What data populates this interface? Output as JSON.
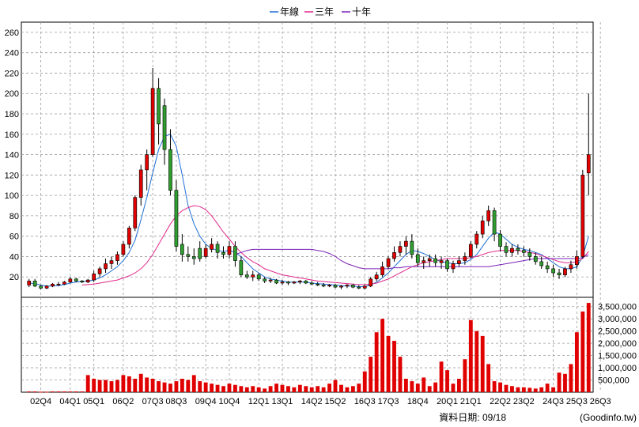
{
  "legend": [
    {
      "label": "年線",
      "color": "#1f6fd6"
    },
    {
      "label": "三年",
      "color": "#e0298a"
    },
    {
      "label": "十年",
      "color": "#7a22b8"
    }
  ],
  "footer": {
    "date_text": "資料日期: 09/18",
    "source_text": "(Goodinfo.tw)"
  },
  "colors": {
    "up": "#e00000",
    "down": "#2f9e2f",
    "volume": "#e00000",
    "grid": "#9a9a9a"
  },
  "chart_data": {
    "type": "candlestick+volume",
    "x_tick_labels": [
      "02Q4",
      "04Q1",
      "05Q1",
      "06Q2",
      "07Q3",
      "08Q3",
      "09Q4",
      "10Q4",
      "12Q1",
      "13Q1",
      "14Q2",
      "15Q2",
      "16Q3",
      "17Q3",
      "18Q4",
      "20Q1",
      "21Q1",
      "22Q2",
      "23Q2",
      "24Q3",
      "25Q3",
      "26Q3"
    ],
    "x_tick_index": [
      2,
      7,
      11,
      16,
      21,
      25,
      30,
      34,
      39,
      43,
      48,
      52,
      57,
      61,
      66,
      71,
      75,
      80,
      84,
      89,
      93,
      97
    ],
    "price_ylim": [
      0,
      270
    ],
    "price_ticks": [
      20,
      40,
      60,
      80,
      100,
      120,
      140,
      160,
      180,
      200,
      220,
      240,
      260
    ],
    "volume_ylim": [
      0,
      3750000
    ],
    "volume_tick_labels": [
      "500,000",
      "1,000,000",
      "1,500,000",
      "2,000,000",
      "2,500,000",
      "3,000,000",
      "3,500,000"
    ],
    "volume_tick_values": [
      500000,
      1000000,
      1500000,
      2000000,
      2500000,
      3000000,
      3500000
    ],
    "grid": true,
    "legend_position": "top-center",
    "candles": [
      [
        12,
        18,
        10,
        16
      ],
      [
        16,
        18,
        10,
        11
      ],
      [
        11,
        12,
        8,
        9
      ],
      [
        9,
        12,
        8,
        11
      ],
      [
        11,
        14,
        10,
        13
      ],
      [
        13,
        15,
        11,
        13
      ],
      [
        13,
        16,
        12,
        15
      ],
      [
        15,
        20,
        14,
        18
      ],
      [
        18,
        19,
        15,
        16
      ],
      [
        16,
        17,
        14,
        15
      ],
      [
        15,
        18,
        14,
        17
      ],
      [
        17,
        26,
        15,
        23
      ],
      [
        23,
        30,
        20,
        28
      ],
      [
        28,
        38,
        24,
        33
      ],
      [
        33,
        40,
        28,
        36
      ],
      [
        36,
        45,
        32,
        42
      ],
      [
        42,
        55,
        40,
        52
      ],
      [
        52,
        70,
        48,
        68
      ],
      [
        68,
        100,
        65,
        98
      ],
      [
        98,
        130,
        90,
        125
      ],
      [
        125,
        145,
        105,
        140
      ],
      [
        140,
        225,
        138,
        205
      ],
      [
        205,
        215,
        150,
        170
      ],
      [
        188,
        195,
        130,
        145
      ],
      [
        145,
        165,
        100,
        105
      ],
      [
        105,
        115,
        45,
        50
      ],
      [
        52,
        62,
        35,
        42
      ],
      [
        42,
        50,
        35,
        40
      ],
      [
        40,
        48,
        32,
        38
      ],
      [
        48,
        55,
        35,
        38
      ],
      [
        40,
        52,
        38,
        48
      ],
      [
        47,
        58,
        44,
        52
      ],
      [
        52,
        55,
        38,
        44
      ],
      [
        44,
        50,
        38,
        42
      ],
      [
        42,
        55,
        38,
        50
      ],
      [
        50,
        55,
        30,
        36
      ],
      [
        36,
        40,
        20,
        22
      ],
      [
        22,
        26,
        18,
        20
      ],
      [
        20,
        26,
        16,
        22
      ],
      [
        22,
        24,
        16,
        18
      ],
      [
        18,
        20,
        14,
        16
      ],
      [
        16,
        19,
        14,
        17
      ],
      [
        17,
        18,
        13,
        14
      ],
      [
        14,
        17,
        12,
        15
      ],
      [
        15,
        16,
        12,
        14
      ],
      [
        14,
        16,
        13,
        15
      ],
      [
        15,
        17,
        13,
        16
      ],
      [
        16,
        17,
        13,
        14
      ],
      [
        14,
        16,
        12,
        13
      ],
      [
        13,
        15,
        11,
        12
      ],
      [
        12,
        14,
        10,
        11
      ],
      [
        11,
        13,
        10,
        12
      ],
      [
        12,
        13,
        9,
        10
      ],
      [
        10,
        12,
        8,
        11
      ],
      [
        11,
        13,
        9,
        12
      ],
      [
        12,
        13,
        9,
        10
      ],
      [
        10,
        12,
        8,
        9
      ],
      [
        9,
        12,
        8,
        11
      ],
      [
        11,
        20,
        10,
        18
      ],
      [
        18,
        25,
        16,
        22
      ],
      [
        22,
        35,
        20,
        30
      ],
      [
        30,
        40,
        28,
        38
      ],
      [
        38,
        50,
        35,
        44
      ],
      [
        44,
        55,
        40,
        50
      ],
      [
        50,
        60,
        42,
        55
      ],
      [
        55,
        62,
        38,
        42
      ],
      [
        42,
        48,
        30,
        34
      ],
      [
        34,
        40,
        28,
        36
      ],
      [
        36,
        42,
        30,
        38
      ],
      [
        38,
        42,
        30,
        34
      ],
      [
        34,
        40,
        28,
        36
      ],
      [
        36,
        38,
        25,
        28
      ],
      [
        28,
        36,
        24,
        33
      ],
      [
        33,
        40,
        30,
        36
      ],
      [
        36,
        44,
        32,
        40
      ],
      [
        40,
        55,
        38,
        52
      ],
      [
        52,
        65,
        48,
        62
      ],
      [
        62,
        80,
        58,
        75
      ],
      [
        75,
        90,
        70,
        85
      ],
      [
        85,
        88,
        55,
        62
      ],
      [
        62,
        66,
        45,
        50
      ],
      [
        50,
        54,
        40,
        44
      ],
      [
        44,
        52,
        40,
        48
      ],
      [
        48,
        52,
        42,
        46
      ],
      [
        46,
        50,
        40,
        44
      ],
      [
        44,
        48,
        36,
        40
      ],
      [
        40,
        44,
        32,
        35
      ],
      [
        35,
        40,
        28,
        31
      ],
      [
        31,
        35,
        24,
        28
      ],
      [
        28,
        32,
        20,
        24
      ],
      [
        24,
        28,
        18,
        22
      ],
      [
        22,
        30,
        20,
        28
      ],
      [
        28,
        36,
        24,
        32
      ],
      [
        32,
        46,
        28,
        40
      ],
      [
        40,
        125,
        38,
        120
      ],
      [
        122,
        200,
        100,
        140
      ]
    ],
    "volume": [
      30000,
      30000,
      20000,
      20000,
      30000,
      30000,
      30000,
      30000,
      30000,
      30000,
      700000,
      550000,
      500000,
      500000,
      450000,
      500000,
      700000,
      650000,
      550000,
      750000,
      600000,
      550000,
      450000,
      400000,
      350000,
      450000,
      550000,
      500000,
      700000,
      450000,
      400000,
      350000,
      300000,
      250000,
      350000,
      300000,
      250000,
      200000,
      250000,
      200000,
      150000,
      250000,
      350000,
      300000,
      250000,
      200000,
      300000,
      250000,
      200000,
      250000,
      200000,
      350000,
      500000,
      300000,
      200000,
      250000,
      350000,
      850000,
      1450000,
      2450000,
      3000000,
      2300000,
      2100000,
      1450000,
      550000,
      450000,
      350000,
      600000,
      250000,
      400000,
      1250000,
      900000,
      350000,
      550000,
      1350000,
      2950000,
      2500000,
      2300000,
      1150000,
      450000,
      400000,
      300000,
      250000,
      200000,
      200000,
      180000,
      150000,
      200000,
      350000,
      200000,
      800000,
      750000,
      1150000,
      2450000,
      3300000,
      3650000
    ],
    "series": [
      {
        "name": "年線",
        "values": [
          14,
          13.5,
          12,
          11,
          11,
          11.5,
          12.5,
          14,
          15,
          15.5,
          16,
          17,
          19,
          22,
          26,
          30,
          36,
          44,
          56,
          76,
          98,
          122,
          145,
          158,
          160,
          148,
          120,
          90,
          72,
          60,
          52,
          48,
          46,
          45,
          46,
          44,
          40,
          34,
          28,
          24,
          20,
          18,
          17,
          16,
          15,
          15,
          15,
          15,
          14,
          13.5,
          13,
          12.5,
          12,
          11.5,
          11,
          11,
          10.5,
          10.5,
          12,
          15,
          19,
          24,
          30,
          36,
          42,
          46,
          45,
          43,
          40,
          37,
          35,
          34,
          33,
          33,
          34,
          37,
          42,
          50,
          58,
          64,
          62,
          57,
          52,
          49,
          47,
          46,
          44,
          42,
          38,
          34,
          30,
          28,
          28,
          30,
          40,
          60
        ]
      },
      {
        "name": "三年",
        "values": [
          null,
          null,
          null,
          null,
          null,
          null,
          null,
          null,
          null,
          12,
          12.5,
          13,
          14,
          15,
          16,
          17,
          19,
          21,
          24,
          28,
          34,
          42,
          52,
          62,
          72,
          80,
          85,
          88,
          90,
          89,
          86,
          80,
          72,
          64,
          57,
          50,
          44,
          39,
          35,
          32,
          28,
          26,
          24,
          22,
          21,
          20,
          19,
          18,
          17,
          16,
          15.5,
          15,
          14.5,
          14,
          13.5,
          13,
          12.5,
          12.5,
          13,
          14,
          16,
          18,
          21,
          24,
          27,
          30,
          32,
          34,
          35,
          36,
          37,
          38,
          38,
          38,
          38,
          39,
          40,
          42,
          44,
          45,
          46,
          46,
          46,
          46,
          45,
          44,
          43,
          41,
          39,
          37,
          35,
          34,
          34,
          35,
          38,
          45
        ]
      },
      {
        "name": "十年",
        "values": [
          null,
          null,
          null,
          null,
          null,
          null,
          null,
          null,
          null,
          null,
          null,
          null,
          null,
          null,
          null,
          null,
          null,
          null,
          null,
          null,
          null,
          null,
          null,
          null,
          null,
          null,
          null,
          null,
          null,
          null,
          null,
          null,
          null,
          null,
          null,
          42,
          44,
          46,
          47,
          47,
          47,
          47,
          47,
          47,
          47,
          47,
          47,
          47,
          47,
          46,
          45,
          43,
          40,
          36,
          33,
          31,
          29,
          28,
          28,
          28,
          28,
          28,
          29,
          29,
          30,
          30,
          30,
          30,
          30,
          30,
          30,
          30,
          30,
          30,
          30,
          30,
          30,
          30,
          30,
          31,
          32,
          33,
          34,
          35,
          36,
          37,
          38,
          38,
          38,
          38,
          38,
          38,
          38,
          38,
          39,
          42
        ]
      }
    ]
  }
}
